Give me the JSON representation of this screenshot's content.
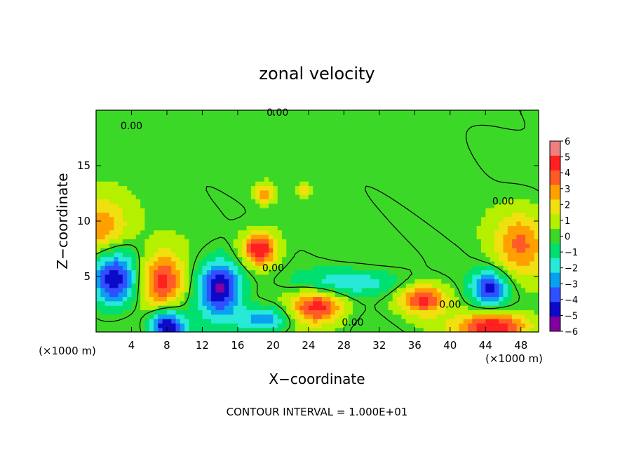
{
  "chart_data": {
    "type": "heatmap",
    "title": "zonal velocity",
    "xlabel": "X−coordinate",
    "ylabel": "Z−coordinate",
    "x_unit": "(×1000 m)",
    "y_unit": "(×1000 m)",
    "xlim": [
      0,
      50
    ],
    "ylim": [
      0,
      20
    ],
    "x_ticks": [
      "4",
      "8",
      "12",
      "16",
      "20",
      "24",
      "28",
      "32",
      "36",
      "40",
      "44",
      "48"
    ],
    "y_ticks": [
      "5",
      "10",
      "15"
    ],
    "x_tick_values": [
      4,
      8,
      12,
      16,
      20,
      24,
      28,
      32,
      36,
      40,
      44,
      48
    ],
    "y_tick_values": [
      5,
      10,
      15
    ],
    "colorbar": {
      "labels": [
        "6",
        "5",
        "4",
        "3",
        "2",
        "1",
        "0",
        "−1",
        "−2",
        "−3",
        "−4",
        "−5",
        "−6"
      ],
      "values": [
        6,
        5,
        4,
        3,
        2,
        1,
        0,
        -1,
        -2,
        -3,
        -4,
        -5,
        -6
      ],
      "colors": [
        "#f08080",
        "#ff2020",
        "#ff5a28",
        "#ffa000",
        "#f0e010",
        "#b4f000",
        "#3cd828",
        "#00e070",
        "#28e8d8",
        "#0aa0f0",
        "#3050ff",
        "#0a0ac8",
        "#8200a0"
      ]
    },
    "contour_label": "0.00",
    "contour_label_positions_data": [
      [
        4,
        18.6
      ],
      [
        20.5,
        19.8
      ],
      [
        46,
        11.8
      ],
      [
        20,
        5.8
      ],
      [
        40,
        2.5
      ],
      [
        29,
        0.9
      ]
    ],
    "features": [
      {
        "x": 0.5,
        "z": 9.5,
        "v": 3.5,
        "rx": 3,
        "rz": 2.5
      },
      {
        "x": 2,
        "z": 4.8,
        "v": -5.5,
        "rx": 2.5,
        "rz": 2.5
      },
      {
        "x": 7.5,
        "z": 4.6,
        "v": 5,
        "rx": 2.5,
        "rz": 2.5
      },
      {
        "x": 14,
        "z": 4,
        "v": -6,
        "rx": 2.5,
        "rz": 2.5
      },
      {
        "x": 18.5,
        "z": 7.5,
        "v": 5.5,
        "rx": 2,
        "rz": 1.5
      },
      {
        "x": 19,
        "z": 12.5,
        "v": 3.5,
        "rx": 1,
        "rz": 0.8
      },
      {
        "x": 23.5,
        "z": 12.8,
        "v": 3,
        "rx": 0.5,
        "rz": 0.5
      },
      {
        "x": 25,
        "z": 2.3,
        "v": 5,
        "rx": 3,
        "rz": 1.5
      },
      {
        "x": 37,
        "z": 3,
        "v": 4.5,
        "rx": 2.5,
        "rz": 1.3
      },
      {
        "x": 44.5,
        "z": 4,
        "v": -5,
        "rx": 2,
        "rz": 1.5
      },
      {
        "x": 48,
        "z": 8,
        "v": 3.5,
        "rx": 3,
        "rz": 3
      },
      {
        "x": 8,
        "z": 0.5,
        "v": -6,
        "rx": 2,
        "rz": 1.5
      },
      {
        "x": 45,
        "z": 0.5,
        "v": 5.5,
        "rx": 4,
        "rz": 1.3
      },
      {
        "x": 19,
        "z": 1.2,
        "v": -3.5,
        "rx": 3,
        "rz": 1.2
      },
      {
        "x": 29,
        "z": 4.5,
        "v": -2.5,
        "rx": 6,
        "rz": 1.2
      }
    ]
  },
  "footer": {
    "contour_interval_text": "CONTOUR INTERVAL = 1.000E+01"
  }
}
